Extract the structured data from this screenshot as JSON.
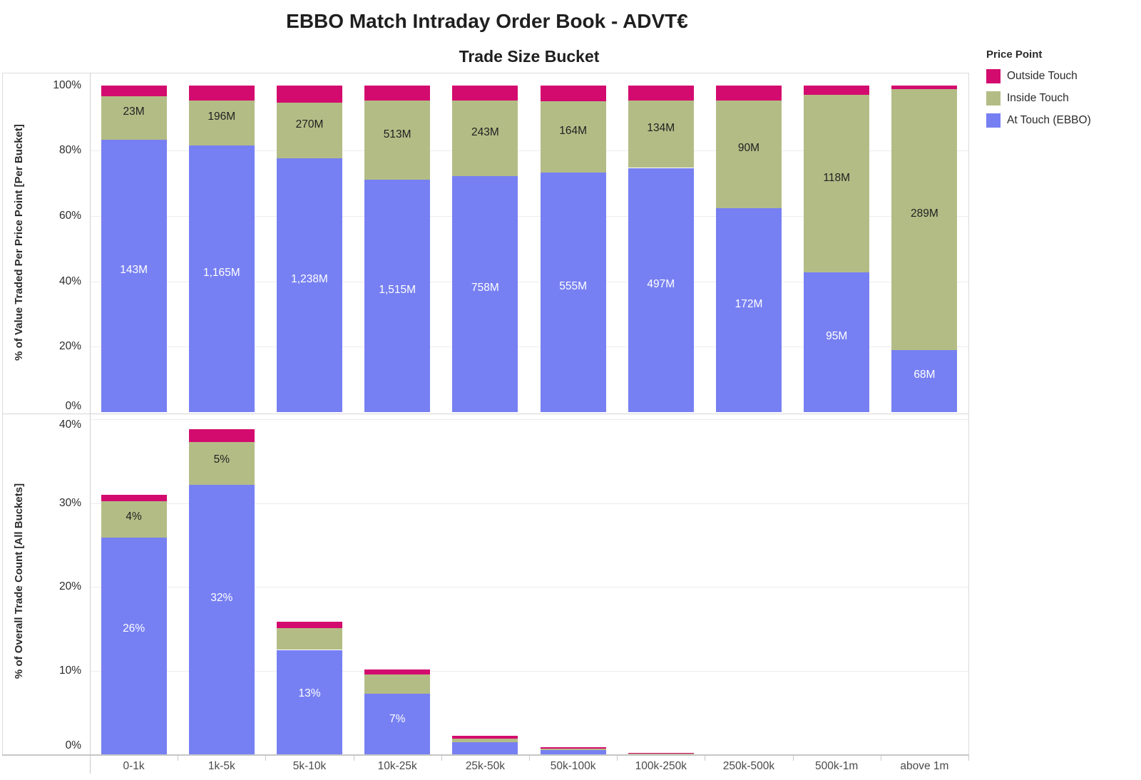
{
  "title": "EBBO Match Intraday Order Book - ADVT€",
  "subtitle": "Trade Size Bucket",
  "legend": {
    "title": "Price Point",
    "items": [
      {
        "label": "Outside Touch",
        "key": "outside"
      },
      {
        "label": "Inside Touch",
        "key": "inside"
      },
      {
        "label": "At Touch (EBBO)",
        "key": "at_touch"
      }
    ],
    "position": "right"
  },
  "colors": {
    "outside": "#d30b6e",
    "inside": "#b4bc86",
    "at_touch": "#7780f2",
    "label_on_blue": "#ffffff",
    "label_on_olive": "#1f1f1f"
  },
  "categories": [
    "0-1k",
    "1k-5k",
    "5k-10k",
    "10k-25k",
    "25k-50k",
    "50k-100k",
    "100k-250k",
    "250k-500k",
    "500k-1m",
    "above 1m"
  ],
  "chart_data": [
    {
      "type": "bar",
      "stacked": true,
      "panel": "top",
      "ylabel": "% of Value Traded Per Price Point [Per Bucket]",
      "xlabel": "Trade Size Bucket",
      "ylim": [
        0,
        100
      ],
      "yticks": [
        0,
        20,
        40,
        60,
        80,
        100
      ],
      "ytick_format": "percent",
      "grid": true,
      "categories": [
        "0-1k",
        "1k-5k",
        "5k-10k",
        "10k-25k",
        "25k-50k",
        "50k-100k",
        "100k-250k",
        "250k-500k",
        "500k-1m",
        "above 1m"
      ],
      "series": [
        {
          "name": "At Touch (EBBO)",
          "key": "at_touch",
          "values": [
            83.3,
            81.5,
            77.6,
            71.0,
            72.2,
            73.2,
            74.7,
            62.4,
            42.8,
            19.0
          ],
          "labels": [
            "143M",
            "1,165M",
            "1,238M",
            "1,515M",
            "758M",
            "555M",
            "497M",
            "172M",
            "95M",
            "68M"
          ]
        },
        {
          "name": "Inside Touch",
          "key": "inside",
          "values": [
            13.4,
            13.9,
            17.1,
            24.3,
            23.2,
            21.9,
            20.6,
            32.9,
            54.2,
            79.7
          ],
          "labels": [
            "23M",
            "196M",
            "270M",
            "513M",
            "243M",
            "164M",
            "134M",
            "90M",
            "118M",
            "289M"
          ]
        },
        {
          "name": "Outside Touch",
          "key": "outside",
          "values": [
            3.3,
            4.6,
            5.3,
            4.7,
            4.6,
            4.9,
            4.7,
            4.7,
            3.0,
            1.3
          ],
          "labels": [
            "",
            "",
            "",
            "",
            "",
            "",
            "",
            "",
            "",
            ""
          ]
        }
      ]
    },
    {
      "type": "bar",
      "stacked": true,
      "panel": "bottom",
      "ylabel": "% of Overall Trade Count [All Buckets]",
      "xlabel": "Trade Size Bucket",
      "ylim": [
        0,
        40
      ],
      "yticks": [
        0,
        10,
        20,
        30,
        40
      ],
      "ytick_format": "percent",
      "grid": true,
      "categories": [
        "0-1k",
        "1k-5k",
        "5k-10k",
        "10k-25k",
        "25k-50k",
        "50k-100k",
        "100k-250k",
        "250k-500k",
        "500k-1m",
        "above 1m"
      ],
      "series": [
        {
          "name": "At Touch (EBBO)",
          "key": "at_touch",
          "values": [
            25.9,
            32.2,
            12.5,
            7.3,
            1.5,
            0.55,
            0.08,
            0,
            0,
            0
          ],
          "labels": [
            "26%",
            "32%",
            "13%",
            "7%",
            "",
            "",
            "",
            "",
            "",
            ""
          ]
        },
        {
          "name": "Inside Touch",
          "key": "inside",
          "values": [
            4.3,
            5.1,
            2.6,
            2.3,
            0.45,
            0.2,
            0.05,
            0,
            0,
            0
          ],
          "labels": [
            "4%",
            "5%",
            "",
            "",
            "",
            "",
            "",
            "",
            "",
            ""
          ]
        },
        {
          "name": "Outside Touch",
          "key": "outside",
          "values": [
            0.8,
            1.5,
            0.8,
            0.6,
            0.3,
            0.15,
            0.12,
            0,
            0,
            0
          ],
          "labels": [
            "",
            "",
            "",
            "",
            "",
            "",
            "",
            "",
            "",
            ""
          ]
        }
      ]
    }
  ]
}
